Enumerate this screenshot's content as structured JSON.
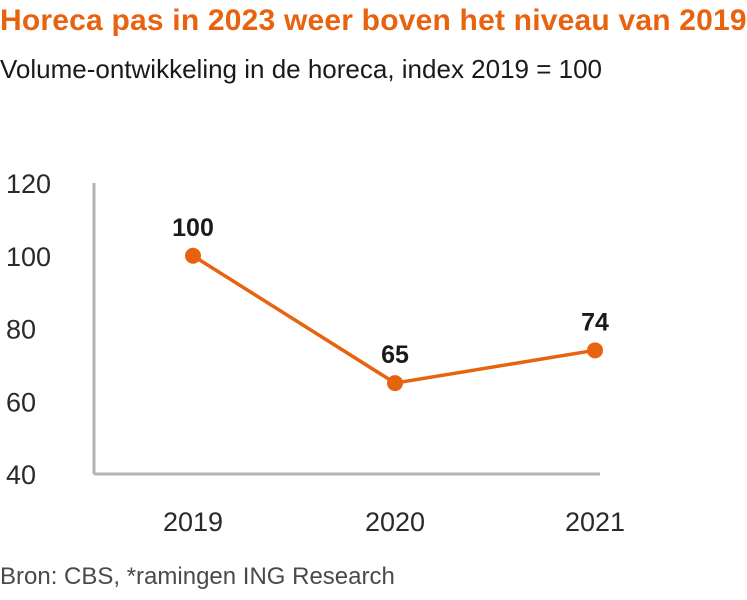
{
  "header": {
    "title": "Horeca pas in 2023 weer boven het niveau van 2019",
    "subtitle": "Volume-ontwikkeling  in de horeca, index 2019 = 100"
  },
  "footer": {
    "source": "Bron: CBS, *ramingen ING Research"
  },
  "colors": {
    "accent": "#e8630f",
    "axis": "#b3b3b3",
    "text": "#1a1a1a"
  },
  "chart_data": {
    "type": "line",
    "title": "Horeca pas in 2023 weer boven het niveau van 2019",
    "subtitle": "Volume-ontwikkeling  in de horeca, index 2019 = 100",
    "categories": [
      "2019",
      "2020",
      "2021"
    ],
    "series": [
      {
        "values": [
          100,
          65,
          74
        ],
        "labels": [
          "100",
          "65",
          "74"
        ]
      }
    ],
    "ylim": [
      40,
      120
    ],
    "yticks": [
      40,
      60,
      80,
      100,
      120
    ],
    "grid": false,
    "line_color": "#e8630f"
  }
}
